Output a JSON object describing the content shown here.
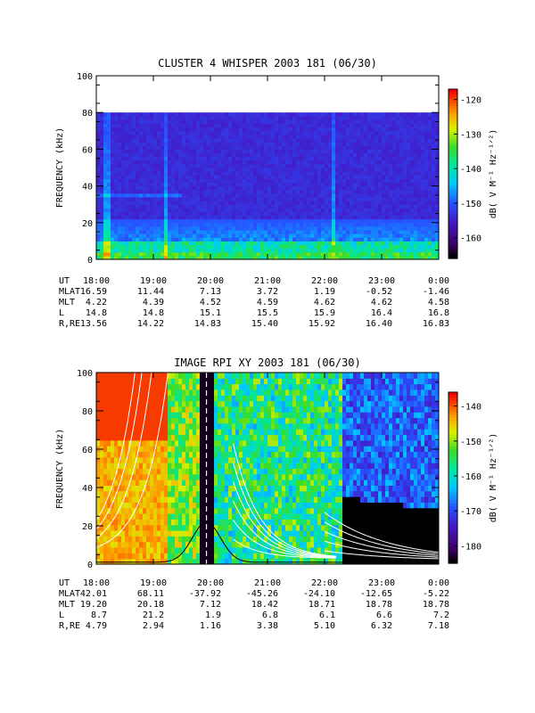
{
  "chart_data": [
    {
      "type": "heatmap",
      "title": "CLUSTER 4 WHISPER 2003 181 (06/30)",
      "ylabel": "FREQUENCY (kHz)",
      "ylim": [
        0,
        100
      ],
      "y_ticks": [
        "0",
        "20",
        "40",
        "60",
        "80",
        "100"
      ],
      "data_max_frequency_khz": 80,
      "colorbar": {
        "label": "dB( V M⁻¹ Hz⁻¹ᐟ²)",
        "range": [
          -166,
          -117
        ],
        "ticks": [
          "-120",
          "-130",
          "-140",
          "-150",
          "-160"
        ]
      },
      "ephemeris": {
        "labels": [
          "UT",
          "MLAT",
          "MLT",
          "L",
          "R,RE"
        ],
        "rows": [
          [
            "18:00",
            "19:00",
            "20:00",
            "21:00",
            "22:00",
            "23:00",
            "0:00"
          ],
          [
            "16.59",
            "11.44",
            "7.13",
            "3.72",
            "1.19",
            "-0.52",
            "-1.46"
          ],
          [
            "4.22",
            "4.39",
            "4.52",
            "4.59",
            "4.62",
            "4.62",
            "4.58"
          ],
          [
            "14.8",
            "14.8",
            "15.1",
            "15.5",
            "15.9",
            "16.4",
            "16.8"
          ],
          [
            "13.56",
            "14.22",
            "14.83",
            "15.40",
            "15.92",
            "16.40",
            "16.83"
          ]
        ]
      }
    },
    {
      "type": "heatmap",
      "title": "IMAGE RPI XY 2003 181 (06/30)",
      "ylabel": "FREQUENCY (kHz)",
      "ylim": [
        0,
        100
      ],
      "y_ticks": [
        "0",
        "20",
        "40",
        "60",
        "80",
        "100"
      ],
      "colorbar": {
        "label": "dB( V M⁻¹ Hz⁻¹ᐟ²)",
        "range": [
          -185,
          -136
        ],
        "ticks": [
          "-140",
          "-150",
          "-160",
          "-170",
          "-180"
        ]
      },
      "ephemeris": {
        "labels": [
          "UT",
          "MLAT",
          "MLT",
          "L",
          "R,RE"
        ],
        "rows": [
          [
            "18:00",
            "19:00",
            "20:00",
            "21:00",
            "22:00",
            "23:00",
            "0:00"
          ],
          [
            "42.01",
            "68.11",
            "-37.92",
            "-45.26",
            "-24.10",
            "-12.65",
            "-5.22"
          ],
          [
            "19.20",
            "20.18",
            "7.12",
            "18.42",
            "18.71",
            "18.78",
            "18.78"
          ],
          [
            "8.7",
            "21.2",
            "1.9",
            "6.8",
            "6.1",
            "6.6",
            "7.2"
          ],
          [
            "4.79",
            "2.94",
            "1.16",
            "3.38",
            "5.10",
            "6.32",
            "7.18"
          ]
        ]
      }
    }
  ]
}
